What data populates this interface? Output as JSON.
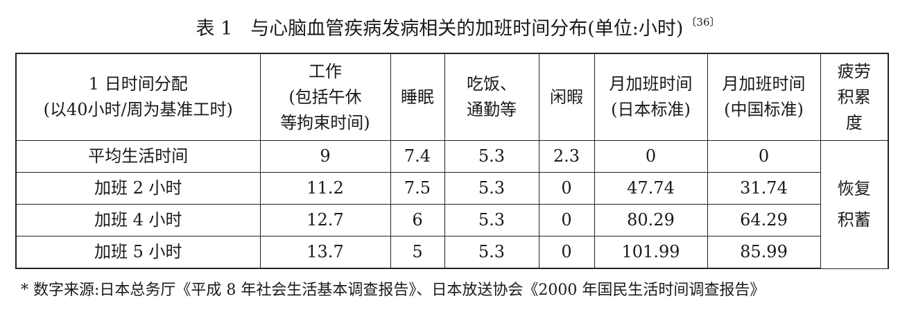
{
  "caption": {
    "label": "表 1",
    "title": "与心脑血管疾病发病相关的加班时间分布(单位:小时)",
    "ref": "〔36〕"
  },
  "table": {
    "headers": [
      "1 日时间分配\n(以40小时/周为基准工时)",
      "工作\n(包括午休\n等拘束时间)",
      "睡眠",
      "吃饭、\n通勤等",
      "闲暇",
      "月加班时间\n(日本标准)",
      "月加班时间\n(中国标准)",
      "疲劳\n积累\n度"
    ],
    "rows": [
      {
        "label": "平均生活时间",
        "values": [
          "9",
          "7.4",
          "5.3",
          "2.3",
          "0",
          "0"
        ]
      },
      {
        "label": "加班 2 小时",
        "values": [
          "11.2",
          "7.5",
          "5.3",
          "0",
          "47.74",
          "31.74"
        ]
      },
      {
        "label": "加班 4 小时",
        "values": [
          "12.7",
          "6",
          "5.3",
          "0",
          "80.29",
          "64.29"
        ]
      },
      {
        "label": "加班 5 小时",
        "values": [
          "13.7",
          "5",
          "5.3",
          "0",
          "101.99",
          "85.99"
        ]
      }
    ],
    "fatigue": "恢复\n积蓄"
  },
  "note": "* 数字来源:日本总务厅《平成 8 年社会生活基本调查报告》、日本放送协会《2000 年国民生活时间调查报告》"
}
